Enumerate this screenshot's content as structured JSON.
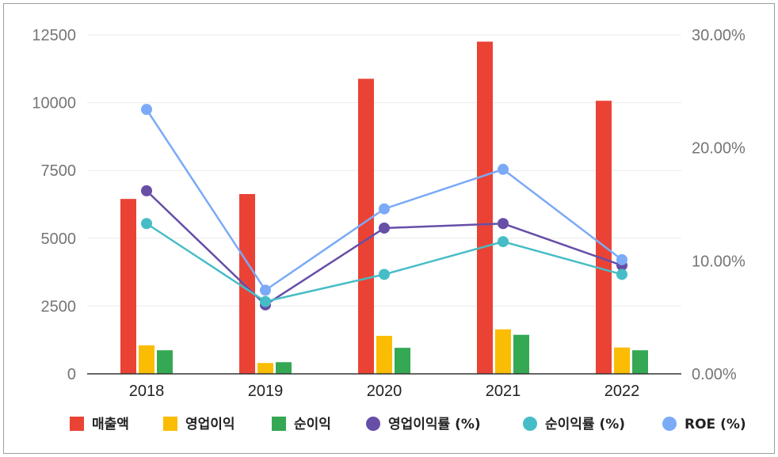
{
  "chart_data": {
    "type": "bar",
    "categories": [
      "2018",
      "2019",
      "2020",
      "2021",
      "2022"
    ],
    "bar_series": [
      {
        "name": "매출액",
        "color": "#ea4335",
        "values": [
          6450,
          6630,
          10880,
          12250,
          10070
        ]
      },
      {
        "name": "영업이익",
        "color": "#fbbc04",
        "values": [
          1050,
          400,
          1400,
          1640,
          970
        ]
      },
      {
        "name": "순이익",
        "color": "#34a853",
        "values": [
          870,
          430,
          960,
          1440,
          870
        ]
      }
    ],
    "line_series": [
      {
        "name": "영업이익률 (%)",
        "color": "#674ea7",
        "values": [
          16.2,
          6.1,
          12.9,
          13.3,
          9.6
        ]
      },
      {
        "name": "순이익률 (%)",
        "color": "#46bdc6",
        "values": [
          13.3,
          6.4,
          8.8,
          11.7,
          8.8
        ]
      },
      {
        "name": "ROE (%)",
        "color": "#7baaf7",
        "values": [
          23.4,
          7.4,
          14.6,
          18.1,
          10.1
        ]
      }
    ],
    "y_left": {
      "ticks": [
        "0",
        "2500",
        "5000",
        "7500",
        "10000",
        "12500"
      ],
      "min": 0,
      "max": 12500
    },
    "y_right": {
      "ticks": [
        "0.00%",
        "10.00%",
        "20.00%",
        "30.00%"
      ],
      "min": 0,
      "max": 30
    },
    "grid": true,
    "legend_position": "bottom"
  }
}
